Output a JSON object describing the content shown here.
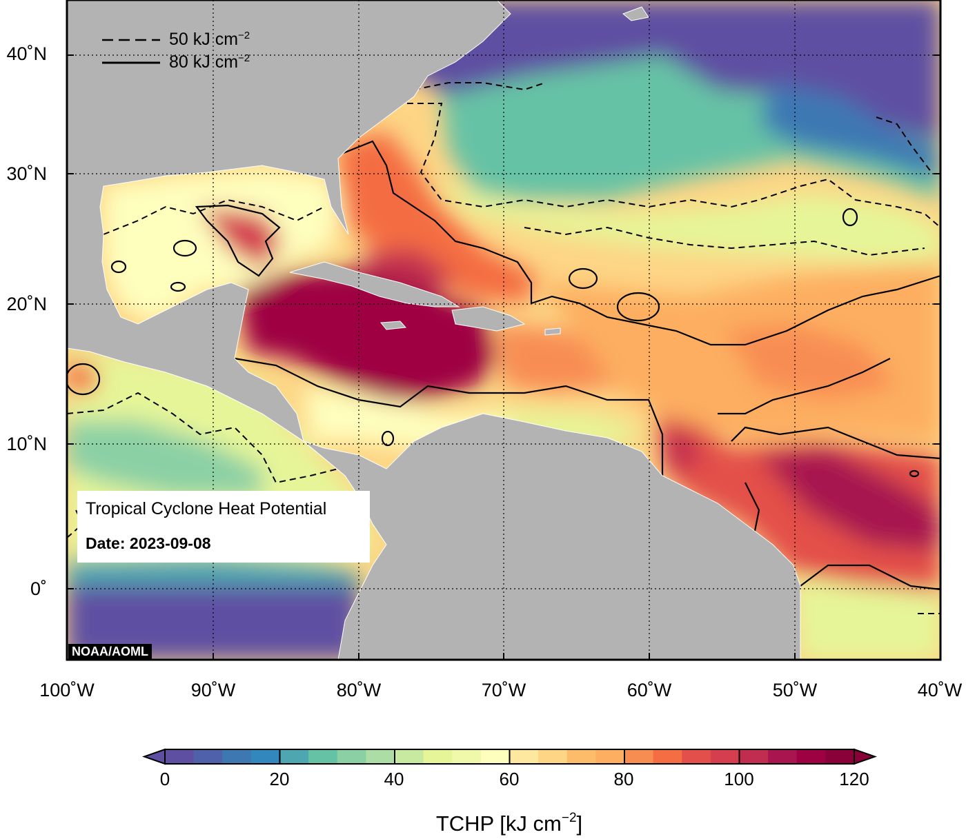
{
  "map": {
    "title": "Tropical Cyclone Heat Potential",
    "date_label": "Date: 2023-09-08",
    "credit": "NOAA/AOML",
    "extent": {
      "lon": [
        -100,
        -40
      ],
      "lat": [
        -5,
        44
      ]
    },
    "lat_labels": [
      "40˚N",
      "30˚N",
      "20˚N",
      "10˚N",
      "0˚"
    ],
    "lon_labels": [
      "100˚W",
      "90˚W",
      "80˚W",
      "70˚W",
      "60˚W",
      "50˚W",
      "40˚W"
    ],
    "gridlines": "dotted",
    "land_color": "#b3b3b3"
  },
  "legend": {
    "position": "top-left",
    "dashed": {
      "text": "50 kJ cm",
      "exponent": "−2",
      "threshold": 50
    },
    "solid": {
      "text": "80 kJ cm",
      "exponent": "−2",
      "threshold": 80
    }
  },
  "colorbar": {
    "title": "TCHP [kJ cm",
    "title_exponent": "−2",
    "title_close": "]",
    "min": 0,
    "max": 120,
    "step": 5,
    "ticks": [
      "0",
      "20",
      "40",
      "60",
      "80",
      "100",
      "120"
    ],
    "extend": "both",
    "colors": [
      "#5e4fa2",
      "#4f61aa",
      "#3d78b3",
      "#3288bd",
      "#4ea6b0",
      "#66c2a5",
      "#8bd0a5",
      "#abdda4",
      "#c7e9a0",
      "#e6f598",
      "#f0f8a9",
      "#fefebd",
      "#fee8a0",
      "#fdd585",
      "#fdbc6a",
      "#fdae61",
      "#f88d52",
      "#f46d43",
      "#e34f4a",
      "#d53e4f",
      "#c12d4f",
      "#a8154f",
      "#9e0142",
      "#8a0039"
    ]
  }
}
